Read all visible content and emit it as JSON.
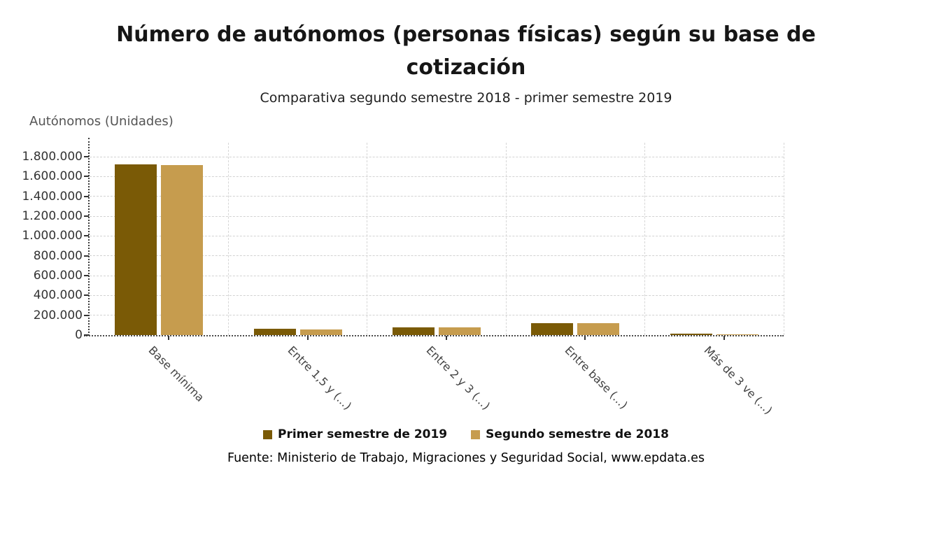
{
  "header": {
    "title_line1": "Número de autónomos (personas físicas) según su base de",
    "title_line2": "cotización",
    "subtitle": "Comparativa segundo semestre 2018 - primer semestre 2019"
  },
  "chart_data": {
    "type": "bar",
    "title": "Número de autónomos (personas físicas) según su base de cotización",
    "subtitle": "Comparativa segundo semestre 2018 - primer semestre 2019",
    "y_axis_title": "Autónomos (Unidades)",
    "categories": [
      "Base mínima",
      "Entre 1,5 y (...)",
      "Entre 2 y 3 (...)",
      "Entre base (...)",
      "Más de 3 ve (...)"
    ],
    "series": [
      {
        "name": "Primer semestre de 2019",
        "color": "#7a5a06",
        "values": [
          1724000,
          62000,
          80000,
          123000,
          14000
        ]
      },
      {
        "name": "Segundo semestre de 2018",
        "color": "#c69c4e",
        "values": [
          1713000,
          57000,
          75000,
          118000,
          10000
        ]
      }
    ],
    "y_ticks": [
      {
        "value": 0,
        "label": "0"
      },
      {
        "value": 200000,
        "label": "200.000"
      },
      {
        "value": 400000,
        "label": "400.000"
      },
      {
        "value": 600000,
        "label": "600.000"
      },
      {
        "value": 800000,
        "label": "800.000"
      },
      {
        "value": 1000000,
        "label": "1.000.000"
      },
      {
        "value": 1200000,
        "label": "1.200.000"
      },
      {
        "value": 1400000,
        "label": "1.400.000"
      },
      {
        "value": 1600000,
        "label": "1.600.000"
      },
      {
        "value": 1800000,
        "label": "1.800.000"
      }
    ],
    "ylim": [
      0,
      1900000
    ],
    "y_max": 1800000,
    "grid": "dashed",
    "legend_position": "bottom",
    "axis_style": "dotted-black",
    "grid_color": "#d2d2d2"
  },
  "source": {
    "text": "Fuente: Ministerio de Trabajo, Migraciones y Seguridad Social, www.epdata.es"
  }
}
